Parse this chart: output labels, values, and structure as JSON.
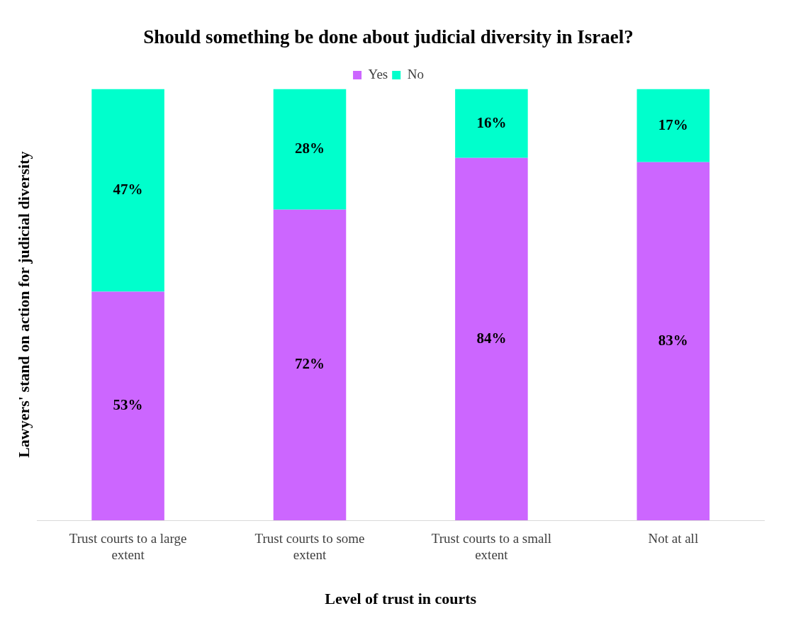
{
  "chart_data": {
    "type": "bar",
    "title": "Should something be done about judicial diversity in Israel?",
    "xlabel": "Level of trust in courts",
    "ylabel": "Lawyers' stand on action for judicial diversity",
    "categories": [
      "Trust courts to a large extent",
      "Trust courts to some extent",
      "Trust courts to a small extent",
      "Not at all"
    ],
    "stacked": true,
    "legend": "top",
    "grid": false,
    "series": [
      {
        "name": "Yes",
        "color": "#cc66ff",
        "values": [
          53,
          72,
          84,
          83
        ],
        "value_labels": [
          "53%",
          "72%",
          "84%",
          "83%"
        ]
      },
      {
        "name": "No",
        "color": "#00ffcc",
        "values": [
          47,
          28,
          16,
          17
        ],
        "value_labels": [
          "47%",
          "28%",
          "16%",
          "17%"
        ]
      }
    ]
  }
}
